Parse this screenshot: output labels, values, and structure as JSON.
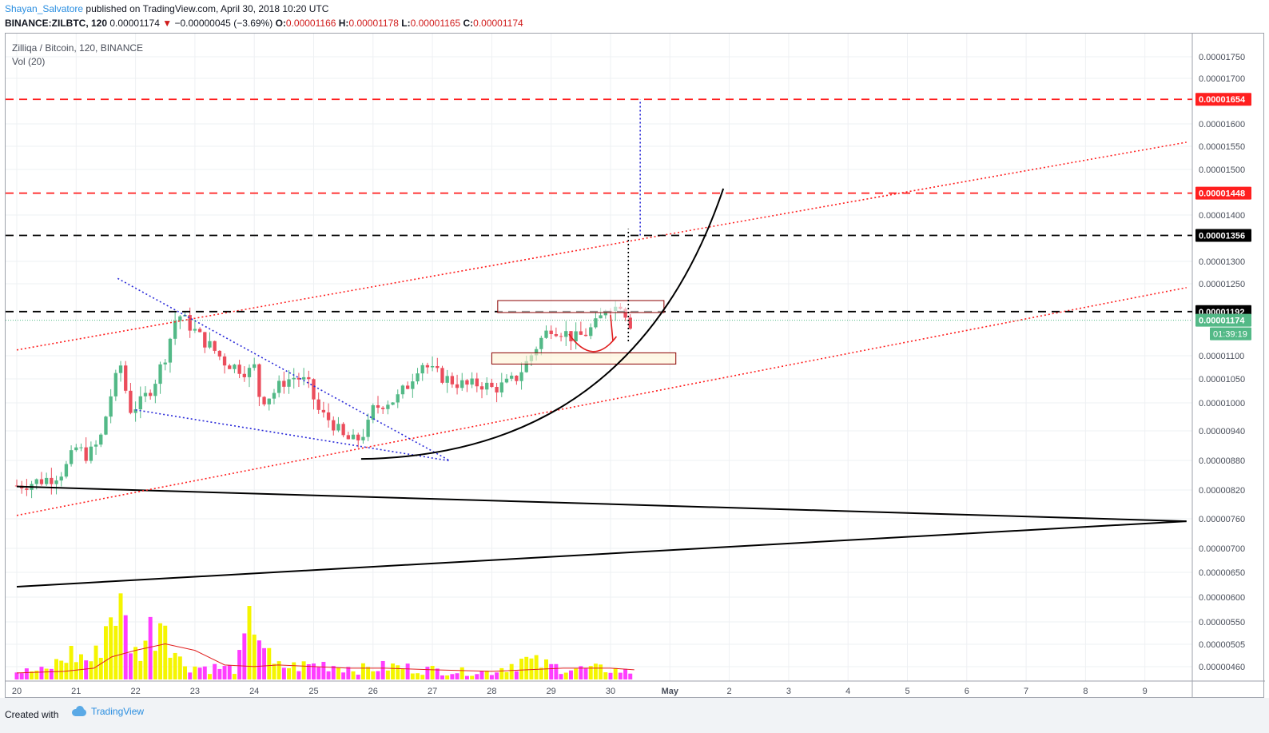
{
  "header": {
    "author": "Shayan_Salvatore",
    "published_text": "published on TradingView.com, April 30, 2018 10:20 UTC",
    "symbol_line": "BINANCE:ZILBTC, 120",
    "last": "0.00001174",
    "change": "−0.00000045 (−3.69%)",
    "o_label": "O:",
    "o_value": "0.00001166",
    "h_label": "H:",
    "h_value": "0.00001178",
    "l_label": "L:",
    "l_value": "0.00001165",
    "c_label": "C:",
    "c_value": "0.00001174"
  },
  "legend": {
    "pair": "Zilliqa / Bitcoin, 120, BINANCE",
    "vol": "Vol (20)"
  },
  "footer": {
    "created_with": "Created with",
    "brand": "TradingView"
  },
  "colors": {
    "up": "#53b987",
    "down": "#eb4d5c",
    "vol_up": "#f5f500",
    "vol_down": "#ff3dff",
    "red_line": "#ff1f1f",
    "blue_dots": "#2b2bd9",
    "grid": "#eef0f3"
  },
  "chart_data": {
    "type": "candlestick",
    "symbol": "ZILBTC",
    "exchange": "BINANCE",
    "interval": "120",
    "x_ticks": [
      "20",
      "21",
      "22",
      "23",
      "24",
      "25",
      "26",
      "27",
      "28",
      "29",
      "30",
      "May",
      "2",
      "3",
      "4",
      "5",
      "6",
      "7",
      "8",
      "9"
    ],
    "y_ticks": [
      "0.00001750",
      "0.00001700",
      "0.00001600",
      "0.00001550",
      "0.00001500",
      "0.00001400",
      "0.00001300",
      "0.00001250",
      "0.00001100",
      "0.00001050",
      "0.00001000",
      "0.00000940",
      "0.00000880",
      "0.00000820",
      "0.00000760",
      "0.00000700",
      "0.00000650",
      "0.00000600",
      "0.00000550",
      "0.00000505",
      "0.00000460"
    ],
    "price_labels": [
      {
        "value": "0.00001654",
        "color": "#ff1f1f"
      },
      {
        "value": "0.00001448",
        "color": "#ff1f1f"
      },
      {
        "value": "0.00001356",
        "color": "#000000"
      },
      {
        "value": "0.00001192",
        "color": "#000000"
      },
      {
        "value": "0.00001174",
        "color": "#53b987"
      }
    ],
    "countdown": "01:39:19",
    "close_path": [
      [
        20.0,
        8.29e-06
      ],
      [
        20.3,
        8.36e-06
      ],
      [
        20.6,
        8.46e-06
      ],
      [
        20.8,
        8.6e-06
      ],
      [
        21.0,
        9.05e-06
      ],
      [
        21.2,
        8.89e-06
      ],
      [
        21.4,
        9.19e-06
      ],
      [
        21.6,
        1.025e-05
      ],
      [
        21.75,
        1.079e-05
      ],
      [
        21.9,
        9.85e-06
      ],
      [
        22.1,
        1.001e-05
      ],
      [
        22.3,
        1.038e-05
      ],
      [
        22.5,
        1.1e-05
      ],
      [
        22.7,
        1.189e-05
      ],
      [
        22.9,
        1.165e-05
      ],
      [
        23.1,
        1.137e-05
      ],
      [
        23.3,
        1.115e-05
      ],
      [
        23.5,
        1.087e-05
      ],
      [
        23.7,
        1.075e-05
      ],
      [
        23.9,
        1.065e-05
      ],
      [
        24.0,
        1.075e-05
      ],
      [
        24.1,
        1.005e-05
      ],
      [
        24.3,
        1.018e-05
      ],
      [
        24.5,
        1.045e-05
      ],
      [
        24.7,
        1.055e-05
      ],
      [
        24.9,
        1.04e-05
      ],
      [
        25.1,
        9.78e-06
      ],
      [
        25.3,
        9.6e-06
      ],
      [
        25.5,
        9.26e-06
      ],
      [
        25.7,
        9.17e-06
      ],
      [
        25.9,
        9.45e-06
      ],
      [
        26.0,
        9.85e-06
      ],
      [
        26.2,
        1.002e-05
      ],
      [
        26.4,
        1.008e-05
      ],
      [
        26.6,
        1.04e-05
      ],
      [
        26.8,
        1.088e-05
      ],
      [
        27.0,
        1.066e-05
      ],
      [
        27.2,
        1.052e-05
      ],
      [
        27.4,
        1.042e-05
      ],
      [
        27.6,
        1.035e-05
      ],
      [
        27.8,
        1.041e-05
      ],
      [
        28.0,
        1.03e-05
      ],
      [
        28.2,
        1.036e-05
      ],
      [
        28.4,
        1.05e-05
      ],
      [
        28.6,
        1.088e-05
      ],
      [
        28.8,
        1.13e-05
      ],
      [
        29.0,
        1.16e-05
      ],
      [
        29.2,
        1.15e-05
      ],
      [
        29.4,
        1.135e-05
      ],
      [
        29.6,
        1.148e-05
      ],
      [
        29.8,
        1.17e-05
      ],
      [
        29.95,
        1.21e-05
      ],
      [
        30.1,
        1.2e-05
      ],
      [
        30.2,
        1.215e-05
      ],
      [
        30.3,
        1.165e-05
      ],
      [
        30.4,
        1.174e-05
      ]
    ],
    "volume_profile": [
      [
        20.0,
        0.06
      ],
      [
        20.5,
        0.07
      ],
      [
        20.9,
        0.2
      ],
      [
        21.3,
        0.14
      ],
      [
        21.65,
        0.62
      ],
      [
        21.8,
        0.45
      ],
      [
        22.0,
        0.2
      ],
      [
        22.5,
        0.55
      ],
      [
        22.7,
        0.15
      ],
      [
        23.0,
        0.1
      ],
      [
        23.7,
        0.08
      ],
      [
        24.0,
        0.5
      ],
      [
        24.3,
        0.1
      ],
      [
        24.7,
        0.1
      ],
      [
        25.2,
        0.12
      ],
      [
        25.8,
        0.08
      ],
      [
        26.3,
        0.1
      ],
      [
        26.8,
        0.08
      ],
      [
        27.5,
        0.06
      ],
      [
        28.0,
        0.06
      ],
      [
        28.5,
        0.15
      ],
      [
        29.0,
        0.1
      ],
      [
        29.5,
        0.08
      ],
      [
        30.0,
        0.08
      ],
      [
        30.4,
        0.05
      ]
    ],
    "volume_ma_profile": [
      [
        20.0,
        0.04
      ],
      [
        20.8,
        0.05
      ],
      [
        21.3,
        0.07
      ],
      [
        21.6,
        0.14
      ],
      [
        22.0,
        0.18
      ],
      [
        22.5,
        0.22
      ],
      [
        23.0,
        0.18
      ],
      [
        23.5,
        0.09
      ],
      [
        24.0,
        0.08
      ],
      [
        24.4,
        0.09
      ],
      [
        25.0,
        0.08
      ],
      [
        25.6,
        0.07
      ],
      [
        26.2,
        0.07
      ],
      [
        27.0,
        0.06
      ],
      [
        28.0,
        0.05
      ],
      [
        28.6,
        0.06
      ],
      [
        29.2,
        0.07
      ],
      [
        30.0,
        0.07
      ],
      [
        30.4,
        0.06
      ]
    ],
    "horizontal_lines": [
      {
        "price": 1.654e-05,
        "style": "dashed",
        "color": "#ff1f1f"
      },
      {
        "price": 1.448e-05,
        "style": "dashed",
        "color": "#ff1f1f"
      },
      {
        "price": 1.356e-05,
        "style": "dashed",
        "color": "#000000"
      },
      {
        "price": 1.192e-05,
        "style": "dashed",
        "color": "#000000"
      }
    ],
    "last_price_line": {
      "price": 1.174e-05,
      "style": "dotted",
      "color": "#53b987"
    },
    "trend_lines": [
      {
        "from": [
          20.0,
          8.27e-06
        ],
        "to": [
          39.7,
          7.55e-06
        ],
        "color": "#000000",
        "style": "solid",
        "scale": "pixel"
      },
      {
        "from": [
          20.0,
          6.21e-06
        ],
        "to": [
          39.7,
          7.55e-06
        ],
        "color": "#000000",
        "style": "solid",
        "scale": "pixel"
      },
      {
        "from": [
          20.0,
          7.67e-06
        ],
        "to": [
          39.7,
          1.242e-05
        ],
        "color": "#ff1f1f",
        "style": "dotted"
      },
      {
        "from": [
          20.0,
          1.112e-05
        ],
        "to": [
          39.7,
          1.559e-05
        ],
        "color": "#ff1f1f",
        "style": "dotted"
      },
      {
        "from": [
          21.7,
          1.262e-05
        ],
        "to": [
          27.3,
          8.79e-06
        ],
        "color": "#2b2bd9",
        "style": "dotted"
      },
      {
        "from": [
          22.0,
          9.85e-06
        ],
        "to": [
          27.3,
          8.79e-06
        ],
        "color": "#2b2bd9",
        "style": "dotted"
      }
    ],
    "annotations": [
      {
        "type": "rectangle",
        "from": [
          28.1,
          1.215e-05
        ],
        "to": [
          30.9,
          1.19e-05
        ],
        "stroke": "#8b0000",
        "fill": "#ffffff"
      },
      {
        "type": "rectangle",
        "from": [
          28.0,
          1.106e-05
        ],
        "to": [
          31.1,
          1.082e-05
        ],
        "stroke": "#8b0000",
        "fill": "#fff3d6"
      },
      {
        "type": "parabolic_curve",
        "from": [
          25.8,
          8.83e-06
        ],
        "to": [
          31.9,
          1.458e-05
        ],
        "color": "#000000"
      },
      {
        "type": "vertical_dotted",
        "x": 30.3,
        "from": 1.13e-05,
        "to": 1.37e-05,
        "color": "#000000"
      },
      {
        "type": "vertical_dotted",
        "x": 30.5,
        "from": 1.356e-05,
        "to": 1.654e-05,
        "color": "#2b2bd9"
      },
      {
        "type": "handdrawn_cup",
        "from": [
          29.3,
          1.145e-05
        ],
        "to": [
          30.1,
          1.14e-05
        ],
        "color": "#e01f1f"
      },
      {
        "type": "black_vertical_line",
        "x": 30.0,
        "from": 1.185e-05,
        "to": 1.13e-05,
        "color": "#e01f1f"
      }
    ],
    "xlabel": "",
    "ylabel": "",
    "grid": true
  }
}
